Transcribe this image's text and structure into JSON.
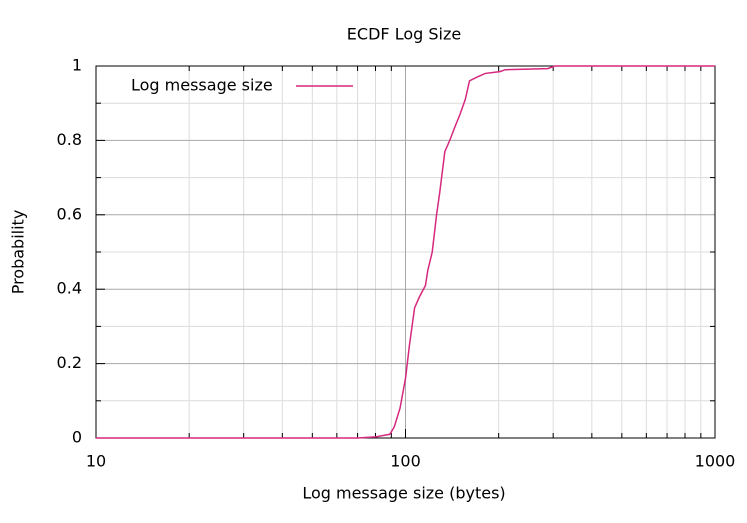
{
  "chart_data": {
    "type": "line",
    "title": "ECDF Log Size",
    "x_label": "Log message size (bytes)",
    "y_label": "Probability",
    "x": [
      10,
      70,
      80,
      89,
      92,
      96,
      100,
      103,
      107,
      111,
      116,
      118,
      122,
      126,
      129,
      134,
      139,
      145,
      150,
      156,
      161,
      170,
      181,
      202,
      210,
      288,
      304,
      1000
    ],
    "series": [
      {
        "name": "Log message size",
        "color": "#d6287e",
        "values": [
          0,
          0,
          0.003,
          0.01,
          0.03,
          0.08,
          0.16,
          0.25,
          0.35,
          0.38,
          0.41,
          0.45,
          0.5,
          0.6,
          0.66,
          0.77,
          0.8,
          0.84,
          0.87,
          0.91,
          0.96,
          0.97,
          0.98,
          0.985,
          0.99,
          0.993,
          1,
          1
        ]
      }
    ],
    "xlog": true,
    "xlim": [
      10,
      1000
    ],
    "xticks": [
      10,
      100,
      1000
    ],
    "xminorticks": [
      20,
      30,
      40,
      50,
      60,
      70,
      80,
      90,
      200,
      300,
      400,
      500,
      600,
      700,
      800,
      900
    ],
    "ylim": [
      0,
      1
    ],
    "yticks": [
      0,
      0.2,
      0.4,
      0.6,
      0.8,
      1
    ],
    "yminorticks": [
      0.1,
      0.3,
      0.5,
      0.7,
      0.9
    ],
    "grid": true,
    "legend": "top left"
  }
}
